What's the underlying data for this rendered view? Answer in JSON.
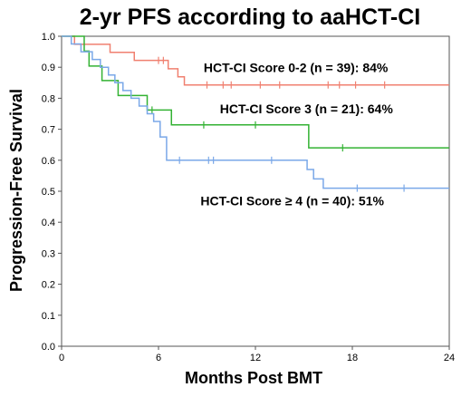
{
  "chart_data": {
    "type": "line",
    "title": "2-yr PFS according to aaHCT-CI",
    "xlabel": "Months Post BMT",
    "ylabel": "Progression-Free Survival",
    "xlim": [
      0,
      24
    ],
    "ylim": [
      0,
      1
    ],
    "xticks": [
      "0",
      "6",
      "12",
      "18",
      "24"
    ],
    "yticks": [
      "0.0",
      "0.1",
      "0.2",
      "0.3",
      "0.4",
      "0.5",
      "0.6",
      "0.7",
      "0.8",
      "0.9",
      "1.0"
    ],
    "grid": false,
    "series": [
      {
        "name": "HCT-CI Score 0-2 (n = 39): 84%",
        "color": "#f08070",
        "step_x": [
          0,
          0.8,
          1.6,
          3.0,
          4.5,
          5.5,
          6.6,
          7.2,
          7.6,
          24
        ],
        "step_y": [
          1.0,
          0.974,
          0.974,
          0.948,
          0.922,
          0.922,
          0.895,
          0.869,
          0.843,
          0.843
        ],
        "censor_x": [
          6.0,
          6.3,
          9.0,
          10.0,
          10.5,
          12.3,
          13.5,
          16.5,
          17.2,
          18.2,
          20.0
        ],
        "annotation_x": 8.8,
        "annotation_y": 0.885
      },
      {
        "name": "HCT-CI Score 3 (n = 21): 64%",
        "color": "#33b233",
        "step_x": [
          0,
          1.4,
          1.7,
          2.5,
          3.5,
          5.3,
          6.8,
          15.3,
          24
        ],
        "step_y": [
          1.0,
          0.952,
          0.904,
          0.857,
          0.809,
          0.762,
          0.714,
          0.64,
          0.64
        ],
        "censor_x": [
          5.6,
          8.8,
          12.0,
          17.4
        ],
        "annotation_x": 9.8,
        "annotation_y": 0.752
      },
      {
        "name": "HCT-CI Score ≥ 4 (n = 40): 51%",
        "color": "#7aa8e8",
        "step_x": [
          0,
          0.6,
          1.2,
          1.9,
          2.4,
          2.9,
          3.3,
          3.8,
          4.3,
          4.8,
          5.3,
          5.7,
          6.1,
          6.5,
          14.8,
          15.2,
          15.6,
          16.2,
          24
        ],
        "step_y": [
          1.0,
          0.975,
          0.95,
          0.925,
          0.9,
          0.875,
          0.85,
          0.825,
          0.8,
          0.775,
          0.75,
          0.725,
          0.675,
          0.6,
          0.6,
          0.57,
          0.54,
          0.51,
          0.51
        ],
        "censor_x": [
          7.3,
          9.1,
          9.4,
          13.0,
          18.3,
          21.2
        ],
        "annotation_x": 8.6,
        "annotation_y": 0.455
      }
    ]
  }
}
